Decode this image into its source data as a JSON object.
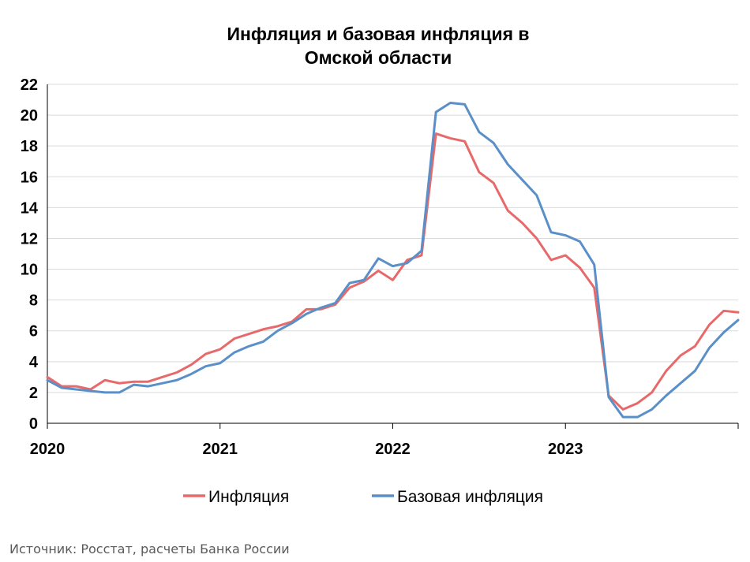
{
  "chart_data": {
    "type": "line",
    "title_lines": [
      "Инфляция и базовая инфляция в",
      "Омской области"
    ],
    "xlabel": "",
    "ylabel": "",
    "ylim": [
      0,
      22
    ],
    "yticks": [
      "0",
      "2",
      "4",
      "6",
      "8",
      "10",
      "12",
      "14",
      "16",
      "18",
      "20",
      "22"
    ],
    "x_tick_labels": [
      "2020",
      "2021",
      "2022",
      "2023"
    ],
    "x_start": "2020-01",
    "x_end": "2024-01",
    "grid": true,
    "legend": "bottom",
    "series": [
      {
        "name": "Инфляция",
        "color": "#e8696a",
        "values": [
          3.0,
          2.4,
          2.4,
          2.2,
          2.8,
          2.6,
          2.7,
          2.7,
          3.0,
          3.3,
          3.8,
          4.5,
          4.8,
          5.5,
          5.8,
          6.1,
          6.3,
          6.6,
          7.4,
          7.4,
          7.7,
          8.8,
          9.2,
          9.9,
          9.3,
          10.6,
          10.9,
          18.8,
          18.5,
          18.3,
          16.3,
          15.6,
          13.8,
          13.0,
          12.0,
          10.6,
          10.9,
          10.1,
          8.8,
          1.8,
          0.9,
          1.3,
          2.0,
          3.4,
          4.4,
          5.0,
          6.4,
          7.3,
          7.2
        ],
        "note": "monthly, Jan 2020 – Jan 2024"
      },
      {
        "name": "Базовая инфляция",
        "color": "#5b8fc7",
        "values": [
          2.8,
          2.3,
          2.2,
          2.1,
          2.0,
          2.0,
          2.5,
          2.4,
          2.6,
          2.8,
          3.2,
          3.7,
          3.9,
          4.6,
          5.0,
          5.3,
          6.0,
          6.5,
          7.1,
          7.5,
          7.8,
          9.1,
          9.3,
          10.7,
          10.2,
          10.4,
          11.2,
          20.2,
          20.8,
          20.7,
          18.9,
          18.2,
          16.8,
          15.8,
          14.8,
          12.4,
          12.2,
          11.8,
          10.3,
          1.7,
          0.4,
          0.4,
          0.9,
          1.8,
          2.6,
          3.4,
          4.9,
          5.9,
          6.7
        ],
        "note": "monthly, Jan 2020 – Jan 2024"
      }
    ]
  },
  "source": "Источник: Росстат, расчеты Банка России"
}
